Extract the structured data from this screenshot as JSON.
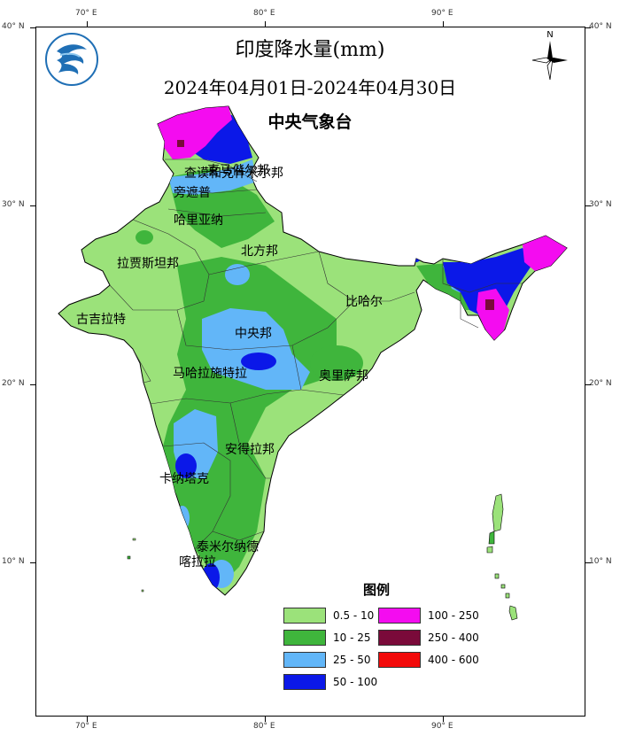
{
  "title": "印度降水量(mm)",
  "period": "2024年04月01日-2024年04月30日",
  "issuer": "中央气象台",
  "north_label": "N",
  "lon_ticks": [
    "70° E",
    "80° E",
    "90° E"
  ],
  "lat_ticks": [
    "40° N",
    "30° N",
    "20° N",
    "10° N"
  ],
  "region_labels": {
    "jammu_kashmir": "查谟和克什米尔邦",
    "himachal": "喜马偕尔邦",
    "punjab": "旁遮普",
    "haryana": "哈里亚纳",
    "uttar_pradesh": "北方邦",
    "rajasthan": "拉贾斯坦邦",
    "gujarat": "古吉拉特",
    "bihar": "比哈尔",
    "madhya_pradesh": "中央邦",
    "maharashtra": "马哈拉施特拉",
    "odisha": "奥里萨邦",
    "andhra_pradesh": "安得拉邦",
    "karnataka": "卡纳塔克",
    "tamil_nadu": "泰米尔纳德",
    "kerala": "喀拉拉"
  },
  "legend": {
    "title": "图例",
    "items": [
      {
        "label": "0.5 - 10",
        "color": "#9be27a"
      },
      {
        "label": "10 - 25",
        "color": "#3fb53c"
      },
      {
        "label": "25 - 50",
        "color": "#62b6f8"
      },
      {
        "label": "50 - 100",
        "color": "#0b18e8"
      },
      {
        "label": "100 - 250",
        "color": "#f40cf0"
      },
      {
        "label": "250 - 400",
        "color": "#7a0a3a"
      },
      {
        "label": "400 - 600",
        "color": "#f20a0a"
      }
    ]
  }
}
